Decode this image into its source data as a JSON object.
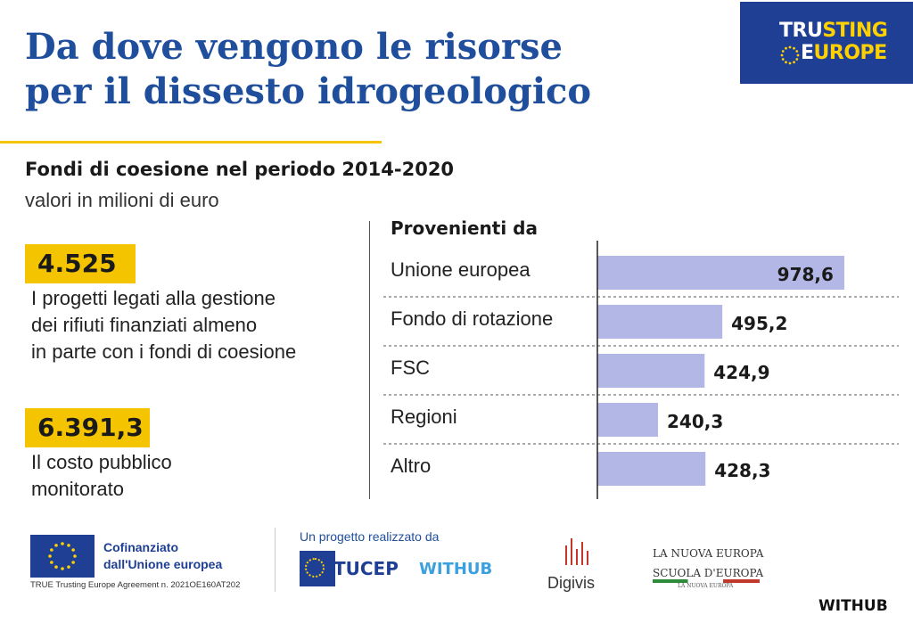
{
  "header": {
    "title_line1": "Da dove vengono le risorse",
    "title_line2": "per il dissesto idrogeologico",
    "logo_line1_white": "TRU",
    "logo_line1_yellow": "STING",
    "logo_line2_white": "E",
    "logo_line2_yellow": "UROPE"
  },
  "subtitle": "Fondi di coesione nel periodo 2014-2020",
  "unit": "valori in milioni di euro",
  "stats": [
    {
      "value": "4.525",
      "text_lines": [
        "I progetti legati alla gestione",
        "dei rifiuti finanziati almeno",
        "in parte con i fondi di coesione"
      ]
    },
    {
      "value": "6.391,3",
      "text_lines": [
        "Il costo pubblico",
        "monitorato"
      ]
    }
  ],
  "chart_data": {
    "type": "bar",
    "orientation": "horizontal",
    "title": "Provenienti da",
    "categories": [
      "Unione europea",
      "Fondo di rotazione",
      "FSC",
      "Regioni",
      "Altro"
    ],
    "values": [
      978.6,
      495.2,
      424.9,
      240.3,
      428.3
    ],
    "value_labels": [
      "978,6",
      "495,2",
      "424,9",
      "240,3",
      "428,3"
    ],
    "bar_color": "#b3b7e6",
    "xlim": [
      0,
      1150
    ],
    "grid": false
  },
  "footer": {
    "eu_cofinanced_line1": "Cofinanziato",
    "eu_cofinanced_line2": "dall'Unione europea",
    "agreement": "TRUE Trusting Europe Agreement n. 2021OE160AT202",
    "project_by": "Un progetto realizzato da",
    "partner_tucep": "TUCEP",
    "partner_withub": "WITHUB",
    "partner_digivis": "Digivis",
    "partner_nuova_europa_1": "LA NUOVA EUROPA",
    "partner_nuova_europa_2": "SCUOLA D'EUROPA",
    "partner_nuova_europa_3": "LA NUOVA EUROPA",
    "watermark": "WITHUB"
  },
  "colors": {
    "accent_blue": "#1f4e9c",
    "accent_yellow": "#f5c400",
    "eu_blue": "#1f3f94"
  }
}
